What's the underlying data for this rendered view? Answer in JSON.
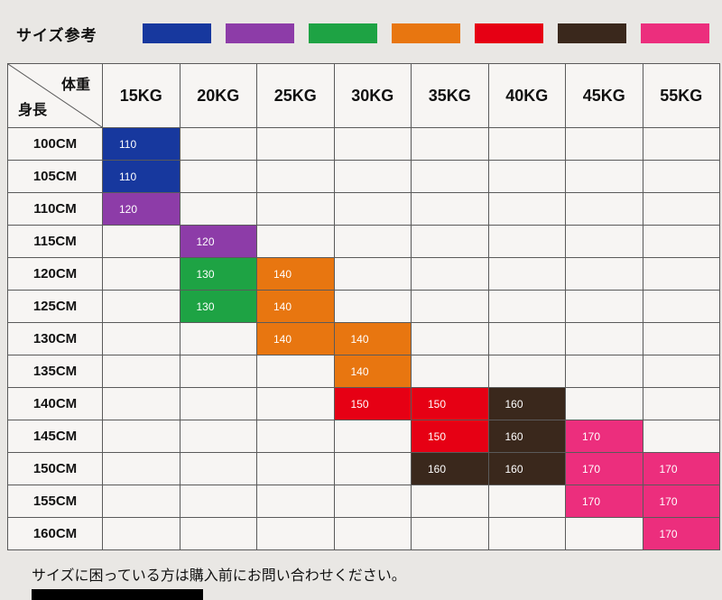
{
  "page": {
    "title": "サイズ参考",
    "note": "サイズに困っている方は購入前にお問い合わせください。"
  },
  "colors": {
    "blue": "#17389e",
    "purple": "#8d3ca8",
    "green": "#1ea344",
    "orange": "#e87610",
    "red": "#e60014",
    "brown": "#3a281c",
    "pink": "#ec2e7d"
  },
  "legend": {
    "swatch_colors": [
      "blue",
      "purple",
      "green",
      "orange",
      "red",
      "brown",
      "pink"
    ]
  },
  "chart_data": {
    "type": "table",
    "title": "サイズ参考",
    "corner_top": "体重",
    "corner_bottom": "身長",
    "weight_headers": [
      "15KG",
      "20KG",
      "25KG",
      "30KG",
      "35KG",
      "40KG",
      "45KG",
      "55KG"
    ],
    "rows": [
      {
        "height": "100CM",
        "cells": [
          {
            "size": "110",
            "color": "blue"
          },
          null,
          null,
          null,
          null,
          null,
          null,
          null
        ]
      },
      {
        "height": "105CM",
        "cells": [
          {
            "size": "110",
            "color": "blue"
          },
          null,
          null,
          null,
          null,
          null,
          null,
          null
        ]
      },
      {
        "height": "110CM",
        "cells": [
          {
            "size": "120",
            "color": "purple"
          },
          null,
          null,
          null,
          null,
          null,
          null,
          null
        ]
      },
      {
        "height": "115CM",
        "cells": [
          null,
          {
            "size": "120",
            "color": "purple"
          },
          null,
          null,
          null,
          null,
          null,
          null
        ]
      },
      {
        "height": "120CM",
        "cells": [
          null,
          {
            "size": "130",
            "color": "green"
          },
          {
            "size": "140",
            "color": "orange"
          },
          null,
          null,
          null,
          null,
          null
        ]
      },
      {
        "height": "125CM",
        "cells": [
          null,
          {
            "size": "130",
            "color": "green"
          },
          {
            "size": "140",
            "color": "orange"
          },
          null,
          null,
          null,
          null,
          null
        ]
      },
      {
        "height": "130CM",
        "cells": [
          null,
          null,
          {
            "size": "140",
            "color": "orange"
          },
          {
            "size": "140",
            "color": "orange"
          },
          null,
          null,
          null,
          null
        ]
      },
      {
        "height": "135CM",
        "cells": [
          null,
          null,
          null,
          {
            "size": "140",
            "color": "orange"
          },
          null,
          null,
          null,
          null
        ]
      },
      {
        "height": "140CM",
        "cells": [
          null,
          null,
          null,
          {
            "size": "150",
            "color": "red"
          },
          {
            "size": "150",
            "color": "red"
          },
          {
            "size": "160",
            "color": "brown"
          },
          null,
          null
        ]
      },
      {
        "height": "145CM",
        "cells": [
          null,
          null,
          null,
          null,
          {
            "size": "150",
            "color": "red"
          },
          {
            "size": "160",
            "color": "brown"
          },
          {
            "size": "170",
            "color": "pink"
          },
          null
        ]
      },
      {
        "height": "150CM",
        "cells": [
          null,
          null,
          null,
          null,
          {
            "size": "160",
            "color": "brown"
          },
          {
            "size": "160",
            "color": "brown"
          },
          {
            "size": "170",
            "color": "pink"
          },
          {
            "size": "170",
            "color": "pink"
          }
        ]
      },
      {
        "height": "155CM",
        "cells": [
          null,
          null,
          null,
          null,
          null,
          null,
          {
            "size": "170",
            "color": "pink"
          },
          {
            "size": "170",
            "color": "pink"
          }
        ]
      },
      {
        "height": "160CM",
        "cells": [
          null,
          null,
          null,
          null,
          null,
          null,
          null,
          {
            "size": "170",
            "color": "pink"
          }
        ]
      }
    ]
  }
}
